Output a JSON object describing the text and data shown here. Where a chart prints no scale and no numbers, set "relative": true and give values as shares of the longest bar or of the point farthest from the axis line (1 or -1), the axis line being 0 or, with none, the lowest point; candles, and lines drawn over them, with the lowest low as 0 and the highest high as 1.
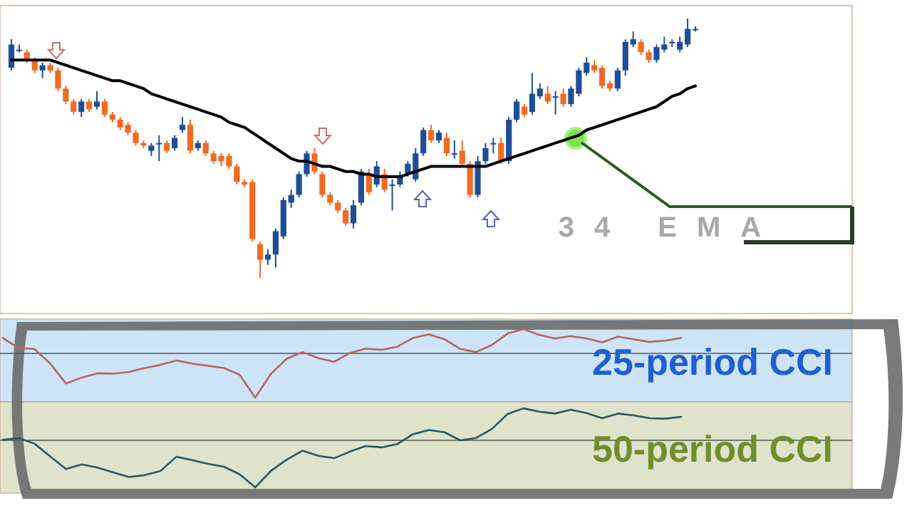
{
  "chart_data": [
    {
      "type": "candlestick",
      "relative": true,
      "annotations": [
        "34 EMA"
      ],
      "categories": [
        null,
        null,
        null,
        null,
        null,
        null,
        null,
        null,
        null,
        null,
        null,
        null,
        null,
        null,
        null,
        null,
        null,
        null,
        null,
        null,
        null,
        null,
        null,
        null,
        null,
        null,
        null,
        null,
        null,
        null,
        null,
        null,
        null,
        null,
        null,
        null,
        null,
        null,
        null,
        null,
        null,
        null,
        null,
        null,
        null,
        null,
        null,
        null,
        null,
        null,
        null,
        null,
        null,
        null,
        null,
        null,
        null,
        null,
        null,
        null,
        null,
        null,
        null,
        null,
        null,
        null,
        null,
        null,
        null,
        null,
        null,
        null,
        null,
        null,
        null,
        null,
        null,
        null,
        null,
        null,
        null,
        null,
        null,
        null,
        null,
        null,
        null,
        null,
        null
      ],
      "ohlc": [
        [
          0.81,
          0.92,
          0.8,
          0.9
        ],
        [
          0.88,
          0.9,
          0.87,
          0.88
        ],
        [
          0.87,
          0.88,
          0.83,
          0.84
        ],
        [
          0.84,
          0.85,
          0.79,
          0.8
        ],
        [
          0.8,
          0.83,
          0.77,
          0.82
        ],
        [
          0.82,
          0.83,
          0.79,
          0.8
        ],
        [
          0.8,
          0.81,
          0.72,
          0.73
        ],
        [
          0.73,
          0.74,
          0.67,
          0.68
        ],
        [
          0.68,
          0.69,
          0.63,
          0.64
        ],
        [
          0.64,
          0.69,
          0.62,
          0.68
        ],
        [
          0.68,
          0.69,
          0.64,
          0.65
        ],
        [
          0.66,
          0.72,
          0.65,
          0.68
        ],
        [
          0.68,
          0.69,
          0.62,
          0.63
        ],
        [
          0.63,
          0.64,
          0.6,
          0.61
        ],
        [
          0.61,
          0.62,
          0.57,
          0.58
        ],
        [
          0.59,
          0.6,
          0.55,
          0.56
        ],
        [
          0.56,
          0.57,
          0.51,
          0.52
        ],
        [
          0.52,
          0.53,
          0.5,
          0.51
        ],
        [
          0.49,
          0.52,
          0.47,
          0.51
        ],
        [
          0.52,
          0.55,
          0.45,
          0.52
        ],
        [
          0.52,
          0.53,
          0.48,
          0.49
        ],
        [
          0.5,
          0.55,
          0.49,
          0.54
        ],
        [
          0.57,
          0.62,
          0.56,
          0.59
        ],
        [
          0.59,
          0.61,
          0.48,
          0.49
        ],
        [
          0.5,
          0.53,
          0.49,
          0.52
        ],
        [
          0.52,
          0.53,
          0.47,
          0.48
        ],
        [
          0.48,
          0.49,
          0.44,
          0.45
        ],
        [
          0.47,
          0.48,
          0.43,
          0.45
        ],
        [
          0.47,
          0.48,
          0.42,
          0.43
        ],
        [
          0.43,
          0.44,
          0.36,
          0.37
        ],
        [
          0.37,
          0.38,
          0.35,
          0.36
        ],
        [
          0.37,
          0.38,
          0.14,
          0.15
        ],
        [
          0.13,
          0.14,
          0,
          0.07
        ],
        [
          0.07,
          0.11,
          0.05,
          0.09
        ],
        [
          0.09,
          0.19,
          0.04,
          0.18
        ],
        [
          0.16,
          0.31,
          0.15,
          0.3
        ],
        [
          0.29,
          0.34,
          0.27,
          0.32
        ],
        [
          0.32,
          0.41,
          0.31,
          0.4
        ],
        [
          0.4,
          0.49,
          0.39,
          0.48
        ],
        [
          0.48,
          0.5,
          0.4,
          0.41
        ],
        [
          0.4,
          0.41,
          0.31,
          0.32
        ],
        [
          0.32,
          0.33,
          0.28,
          0.29
        ],
        [
          0.29,
          0.3,
          0.25,
          0.26
        ],
        [
          0.26,
          0.27,
          0.2,
          0.21
        ],
        [
          0.21,
          0.3,
          0.19,
          0.28
        ],
        [
          0.29,
          0.42,
          0.28,
          0.41
        ],
        [
          0.4,
          0.42,
          0.32,
          0.33
        ],
        [
          0.36,
          0.45,
          0.35,
          0.43
        ],
        [
          0.4,
          0.42,
          0.33,
          0.34
        ],
        [
          0.36,
          0.38,
          0.26,
          0.36
        ],
        [
          0.36,
          0.41,
          0.35,
          0.39
        ],
        [
          0.4,
          0.45,
          0.39,
          0.44
        ],
        [
          0.38,
          0.5,
          0.37,
          0.48
        ],
        [
          0.48,
          0.58,
          0.47,
          0.57
        ],
        [
          0.57,
          0.59,
          0.52,
          0.53
        ],
        [
          0.53,
          0.57,
          0.52,
          0.56
        ],
        [
          0.54,
          0.56,
          0.47,
          0.48
        ],
        [
          0.48,
          0.53,
          0.46,
          0.48
        ],
        [
          0.49,
          0.53,
          0.43,
          0.44
        ],
        [
          0.44,
          0.45,
          0.31,
          0.32
        ],
        [
          0.32,
          0.47,
          0.31,
          0.45
        ],
        [
          0.45,
          0.52,
          0.44,
          0.5
        ],
        [
          0.52,
          0.54,
          0.48,
          0.52
        ],
        [
          0.52,
          0.54,
          0.44,
          0.45
        ],
        [
          0.45,
          0.62,
          0.44,
          0.61
        ],
        [
          0.61,
          0.69,
          0.6,
          0.68
        ],
        [
          0.66,
          0.67,
          0.62,
          0.63
        ],
        [
          0.64,
          0.79,
          0.63,
          0.71
        ],
        [
          0.7,
          0.75,
          0.69,
          0.73
        ],
        [
          0.71,
          0.74,
          0.67,
          0.68
        ],
        [
          0.7,
          0.72,
          0.63,
          0.7
        ],
        [
          0.71,
          0.73,
          0.66,
          0.67
        ],
        [
          0.67,
          0.74,
          0.66,
          0.73
        ],
        [
          0.71,
          0.81,
          0.7,
          0.8
        ],
        [
          0.79,
          0.85,
          0.78,
          0.83
        ],
        [
          0.82,
          0.84,
          0.79,
          0.8
        ],
        [
          0.81,
          0.82,
          0.73,
          0.74
        ],
        [
          0.75,
          0.76,
          0.72,
          0.73
        ],
        [
          0.73,
          0.81,
          0.72,
          0.8
        ],
        [
          0.8,
          0.92,
          0.78,
          0.91
        ],
        [
          0.9,
          0.95,
          0.89,
          0.92
        ],
        [
          0.91,
          0.92,
          0.86,
          0.87
        ],
        [
          0.87,
          0.88,
          0.83,
          0.84
        ],
        [
          0.84,
          0.9,
          0.83,
          0.89
        ],
        [
          0.88,
          0.93,
          0.87,
          0.9
        ],
        [
          0.91,
          0.92,
          0.89,
          0.91
        ],
        [
          0.88,
          0.93,
          0.87,
          0.91
        ],
        [
          0.9,
          1,
          0.89,
          0.96
        ],
        [
          0.96,
          0.97,
          0.95,
          0.96
        ]
      ],
      "colors": [
        "#1f4e96",
        "#1f4e96",
        "#f26a21",
        "#f26a21",
        "#1f4e96",
        "#f26a21",
        "#f26a21",
        "#f26a21",
        "#f26a21",
        "#1f4e96",
        "#f26a21",
        "#1f4e96",
        "#f26a21",
        "#f26a21",
        "#f26a21",
        "#f26a21",
        "#f26a21",
        "#f26a21",
        "#1f4e96",
        "#1f4e96",
        "#f26a21",
        "#1f4e96",
        "#1f4e96",
        "#f26a21",
        "#1f4e96",
        "#f26a21",
        "#f26a21",
        "#f26a21",
        "#f26a21",
        "#f26a21",
        "#f26a21",
        "#f26a21",
        "#f26a21",
        "#1f4e96",
        "#1f4e96",
        "#1f4e96",
        "#1f4e96",
        "#1f4e96",
        "#1f4e96",
        "#f26a21",
        "#f26a21",
        "#f26a21",
        "#f26a21",
        "#f26a21",
        "#1f4e96",
        "#1f4e96",
        "#f26a21",
        "#1f4e96",
        "#f26a21",
        "#1f4e96",
        "#1f4e96",
        "#1f4e96",
        "#1f4e96",
        "#1f4e96",
        "#f26a21",
        "#1f4e96",
        "#f26a21",
        "#1f4e96",
        "#f26a21",
        "#f26a21",
        "#1f4e96",
        "#1f4e96",
        "#1f4e96",
        "#f26a21",
        "#1f4e96",
        "#1f4e96",
        "#f26a21",
        "#1f4e96",
        "#1f4e96",
        "#f26a21",
        "#1f4e96",
        "#f26a21",
        "#1f4e96",
        "#1f4e96",
        "#1f4e96",
        "#f26a21",
        "#f26a21",
        "#f26a21",
        "#1f4e96",
        "#1f4e96",
        "#1f4e96",
        "#f26a21",
        "#f26a21",
        "#1f4e96",
        "#1f4e96",
        "#1f4e96",
        "#1f4e96",
        "#1f4e96",
        "#1f4e96"
      ],
      "series": [
        {
          "type": "line",
          "color": "#000000",
          "values": [
            0.84,
            0.84,
            0.84,
            0.84,
            0.84,
            0.84,
            0.83,
            0.82,
            0.81,
            0.8,
            0.79,
            0.78,
            0.77,
            0.76,
            0.76,
            0.75,
            0.74,
            0.73,
            0.71,
            0.7,
            0.69,
            0.68,
            0.67,
            0.66,
            0.65,
            0.64,
            0.63,
            0.62,
            0.6,
            0.59,
            0.58,
            0.56,
            0.54,
            0.52,
            0.5,
            0.48,
            0.46,
            0.45,
            0.45,
            0.44,
            0.43,
            0.43,
            0.42,
            0.41,
            0.41,
            0.4,
            0.4,
            0.39,
            0.39,
            0.39,
            0.39,
            0.4,
            0.41,
            0.42,
            0.43,
            0.43,
            0.43,
            0.43,
            0.43,
            0.43,
            0.43,
            0.43,
            0.44,
            0.45,
            0.46,
            0.47,
            0.48,
            0.49,
            0.5,
            0.51,
            0.52,
            0.53,
            0.54,
            0.55,
            0.57,
            0.58,
            0.59,
            0.6,
            0.61,
            0.62,
            0.63,
            0.64,
            0.65,
            0.66,
            0.68,
            0.7,
            0.71,
            0.73,
            0.74
          ]
        }
      ]
    },
    {
      "type": "line",
      "relative": true,
      "title": "25-period CCI",
      "categories": [
        null,
        null,
        null,
        null,
        null,
        null,
        null,
        null,
        null,
        null,
        null,
        null,
        null,
        null,
        null,
        null,
        null,
        null,
        null,
        null,
        null,
        null,
        null,
        null,
        null,
        null,
        null,
        null,
        null,
        null,
        null,
        null,
        null,
        null,
        null,
        null,
        null,
        null,
        null,
        null,
        null,
        null,
        null,
        null
      ],
      "series": [
        {
          "color": "#b8655c",
          "values": [
            0.35,
            0.12,
            0.1,
            -0.23,
            -0.68,
            -0.55,
            -0.45,
            -0.46,
            -0.42,
            -0.33,
            -0.26,
            -0.16,
            -0.23,
            -0.28,
            -0.33,
            -0.48,
            -1,
            -0.46,
            -0.12,
            0.03,
            -0.11,
            -0.19,
            0.01,
            0.11,
            0.08,
            0.15,
            0.35,
            0.43,
            0.32,
            0.1,
            0.03,
            0.19,
            0.45,
            0.55,
            0.42,
            0.34,
            0.39,
            0.34,
            0.25,
            0.38,
            0.32,
            0.26,
            0.29,
            0.35
          ]
        }
      ]
    },
    {
      "type": "line",
      "relative": true,
      "title": "50-period CCI",
      "categories": [
        null,
        null,
        null,
        null,
        null,
        null,
        null,
        null,
        null,
        null,
        null,
        null,
        null,
        null,
        null,
        null,
        null,
        null,
        null,
        null,
        null,
        null,
        null,
        null,
        null,
        null,
        null,
        null,
        null,
        null,
        null,
        null,
        null,
        null,
        null,
        null,
        null,
        null,
        null,
        null,
        null,
        null,
        null,
        null
      ],
      "series": [
        {
          "color": "#2e5560",
          "values": [
            0.01,
            0.05,
            -0.07,
            -0.34,
            -0.61,
            -0.51,
            -0.58,
            -0.68,
            -0.78,
            -0.74,
            -0.65,
            -0.35,
            -0.42,
            -0.5,
            -0.56,
            -0.72,
            -1,
            -0.65,
            -0.41,
            -0.22,
            -0.33,
            -0.38,
            -0.24,
            -0.12,
            -0.15,
            -0.08,
            0.13,
            0.22,
            0.17,
            0,
            0.05,
            0.24,
            0.56,
            0.68,
            0.61,
            0.57,
            0.65,
            0.58,
            0.47,
            0.57,
            0.53,
            0.47,
            0.46,
            0.5
          ]
        }
      ]
    }
  ]
}
